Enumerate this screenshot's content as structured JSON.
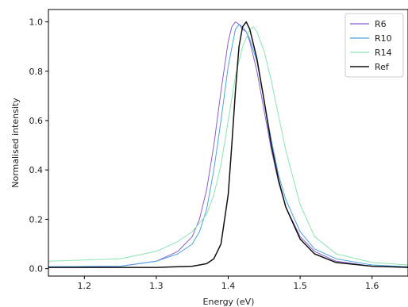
{
  "chart_data": {
    "type": "line",
    "xlabel": "Energy (eV)",
    "ylabel": "Normalised intensity",
    "xlim": [
      1.15,
      1.65
    ],
    "ylim": [
      -0.03,
      1.05
    ],
    "xticks": [
      1.2,
      1.3,
      1.4,
      1.5,
      1.6
    ],
    "yticks": [
      0.0,
      0.2,
      0.4,
      0.6,
      0.8,
      1.0
    ],
    "grid": false,
    "legend_position": "top-right",
    "series": [
      {
        "name": "R6",
        "color": "#8a5cd6",
        "x": [
          1.15,
          1.25,
          1.3,
          1.33,
          1.35,
          1.36,
          1.37,
          1.38,
          1.39,
          1.4,
          1.405,
          1.41,
          1.415,
          1.42,
          1.425,
          1.43,
          1.44,
          1.45,
          1.46,
          1.47,
          1.48,
          1.5,
          1.52,
          1.55,
          1.6,
          1.65
        ],
        "y": [
          0.008,
          0.01,
          0.03,
          0.07,
          0.13,
          0.2,
          0.32,
          0.5,
          0.72,
          0.92,
          0.98,
          1.0,
          0.99,
          0.97,
          0.96,
          0.92,
          0.8,
          0.64,
          0.48,
          0.35,
          0.25,
          0.13,
          0.07,
          0.03,
          0.01,
          0.005
        ]
      },
      {
        "name": "R10",
        "color": "#4fa3e0",
        "x": [
          1.15,
          1.25,
          1.3,
          1.33,
          1.35,
          1.36,
          1.37,
          1.38,
          1.39,
          1.4,
          1.41,
          1.415,
          1.42,
          1.425,
          1.43,
          1.44,
          1.45,
          1.46,
          1.47,
          1.48,
          1.5,
          1.52,
          1.55,
          1.6,
          1.65
        ],
        "y": [
          0.008,
          0.01,
          0.03,
          0.06,
          0.1,
          0.15,
          0.24,
          0.4,
          0.6,
          0.82,
          0.97,
          0.99,
          0.98,
          0.96,
          0.93,
          0.84,
          0.68,
          0.52,
          0.38,
          0.28,
          0.15,
          0.08,
          0.04,
          0.015,
          0.008
        ]
      },
      {
        "name": "R14",
        "color": "#8fe3b4",
        "x": [
          1.15,
          1.25,
          1.3,
          1.33,
          1.35,
          1.37,
          1.38,
          1.39,
          1.4,
          1.41,
          1.42,
          1.43,
          1.435,
          1.44,
          1.45,
          1.46,
          1.47,
          1.48,
          1.5,
          1.52,
          1.55,
          1.6,
          1.65
        ],
        "y": [
          0.03,
          0.04,
          0.07,
          0.11,
          0.15,
          0.22,
          0.3,
          0.42,
          0.6,
          0.78,
          0.9,
          0.97,
          0.98,
          0.96,
          0.88,
          0.76,
          0.62,
          0.48,
          0.26,
          0.13,
          0.06,
          0.025,
          0.015
        ]
      },
      {
        "name": "Ref",
        "color": "#111111",
        "x": [
          1.15,
          1.3,
          1.35,
          1.37,
          1.38,
          1.39,
          1.4,
          1.405,
          1.41,
          1.415,
          1.42,
          1.425,
          1.43,
          1.44,
          1.45,
          1.46,
          1.47,
          1.48,
          1.5,
          1.52,
          1.55,
          1.6,
          1.65
        ],
        "y": [
          0.005,
          0.005,
          0.01,
          0.02,
          0.04,
          0.1,
          0.3,
          0.5,
          0.72,
          0.9,
          0.98,
          1.0,
          0.97,
          0.85,
          0.68,
          0.5,
          0.36,
          0.25,
          0.12,
          0.06,
          0.025,
          0.01,
          0.005
        ]
      }
    ]
  }
}
